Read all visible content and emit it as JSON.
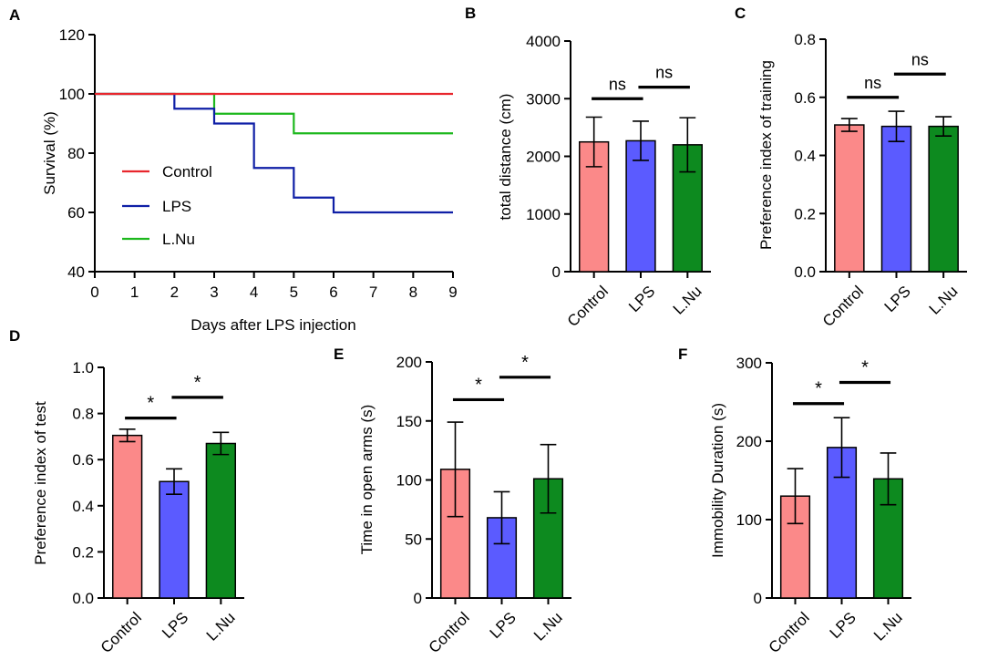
{
  "chart_data": [
    {
      "panel": "A",
      "type": "line",
      "step": true,
      "xlabel": "Days after LPS injection",
      "ylabel": "Survival (%)",
      "xlim": [
        0,
        9
      ],
      "ylim": [
        40,
        120
      ],
      "xticks": [
        0,
        1,
        2,
        3,
        4,
        5,
        6,
        7,
        8,
        9
      ],
      "yticks": [
        40,
        60,
        80,
        100,
        120
      ],
      "series": [
        {
          "name": "Control",
          "color": "#e8262d",
          "x": [
            0,
            9
          ],
          "y": [
            100,
            100
          ]
        },
        {
          "name": "LPS",
          "color": "#0f1fa6",
          "x": [
            0,
            2,
            3,
            4,
            5,
            6,
            9
          ],
          "y": [
            100,
            95,
            90,
            75,
            65,
            60,
            60
          ]
        },
        {
          "name": "L.Nu",
          "color": "#1db81d",
          "x": [
            0,
            3,
            5,
            9
          ],
          "y": [
            100,
            93.3,
            86.7,
            86.7
          ]
        }
      ]
    },
    {
      "panel": "B",
      "type": "bar",
      "ylabel": "total distance (cm)",
      "categories": [
        "Control",
        "LPS",
        "L.Nu"
      ],
      "values": [
        2250,
        2270,
        2200
      ],
      "errors": [
        430,
        340,
        470
      ],
      "colors": [
        "#fb8989",
        "#5b5bff",
        "#0d8a1f"
      ],
      "ylim": [
        0,
        4000
      ],
      "yticks": [
        0,
        1000,
        2000,
        3000,
        4000
      ],
      "significance": [
        {
          "from": 0,
          "to": 1,
          "label": "ns",
          "y": 3000
        },
        {
          "from": 1,
          "to": 2,
          "label": "ns",
          "y": 3200
        }
      ]
    },
    {
      "panel": "C",
      "type": "bar",
      "ylabel": "Preference index of training",
      "categories": [
        "Control",
        "LPS",
        "L.Nu"
      ],
      "values": [
        0.505,
        0.5,
        0.5
      ],
      "errors": [
        0.022,
        0.052,
        0.033
      ],
      "colors": [
        "#fb8989",
        "#5b5bff",
        "#0d8a1f"
      ],
      "ylim": [
        0,
        0.8
      ],
      "yticks": [
        "0.0",
        "0.2",
        "0.4",
        "0.6",
        "0.8"
      ],
      "significance": [
        {
          "from": 0,
          "to": 1,
          "label": "ns",
          "y": 0.6
        },
        {
          "from": 1,
          "to": 2,
          "label": "ns",
          "y": 0.68
        }
      ]
    },
    {
      "panel": "D",
      "type": "bar",
      "ylabel": "Preference index of test",
      "categories": [
        "Control",
        "LPS",
        "L.Nu"
      ],
      "values": [
        0.705,
        0.505,
        0.67
      ],
      "errors": [
        0.027,
        0.055,
        0.048
      ],
      "colors": [
        "#fb8989",
        "#5b5bff",
        "#0d8a1f"
      ],
      "ylim": [
        0,
        1.0
      ],
      "yticks": [
        "0.0",
        "0.2",
        "0.4",
        "0.6",
        "0.8",
        "1.0"
      ],
      "significance": [
        {
          "from": 0,
          "to": 1,
          "label": "*",
          "y": 0.78
        },
        {
          "from": 1,
          "to": 2,
          "label": "*",
          "y": 0.87
        }
      ]
    },
    {
      "panel": "E",
      "type": "bar",
      "ylabel": "Time in open arms (s)",
      "categories": [
        "Control",
        "LPS",
        "L.Nu"
      ],
      "values": [
        109,
        68,
        101
      ],
      "errors": [
        40,
        22,
        29
      ],
      "colors": [
        "#fb8989",
        "#5b5bff",
        "#0d8a1f"
      ],
      "ylim": [
        0,
        200
      ],
      "yticks": [
        0,
        50,
        100,
        150,
        200
      ],
      "significance": [
        {
          "from": 0,
          "to": 1,
          "label": "*",
          "y": 168
        },
        {
          "from": 1,
          "to": 2,
          "label": "*",
          "y": 187
        }
      ]
    },
    {
      "panel": "F",
      "type": "bar",
      "ylabel": "Immobility Duration (s)",
      "categories": [
        "Control",
        "LPS",
        "L.Nu"
      ],
      "values": [
        130,
        192,
        152
      ],
      "errors": [
        35,
        38,
        33
      ],
      "colors": [
        "#fb8989",
        "#5b5bff",
        "#0d8a1f"
      ],
      "ylim": [
        0,
        300
      ],
      "yticks": [
        0,
        100,
        200,
        300
      ],
      "significance": [
        {
          "from": 0,
          "to": 1,
          "label": "*",
          "y": 248
        },
        {
          "from": 1,
          "to": 2,
          "label": "*",
          "y": 275
        }
      ]
    }
  ]
}
